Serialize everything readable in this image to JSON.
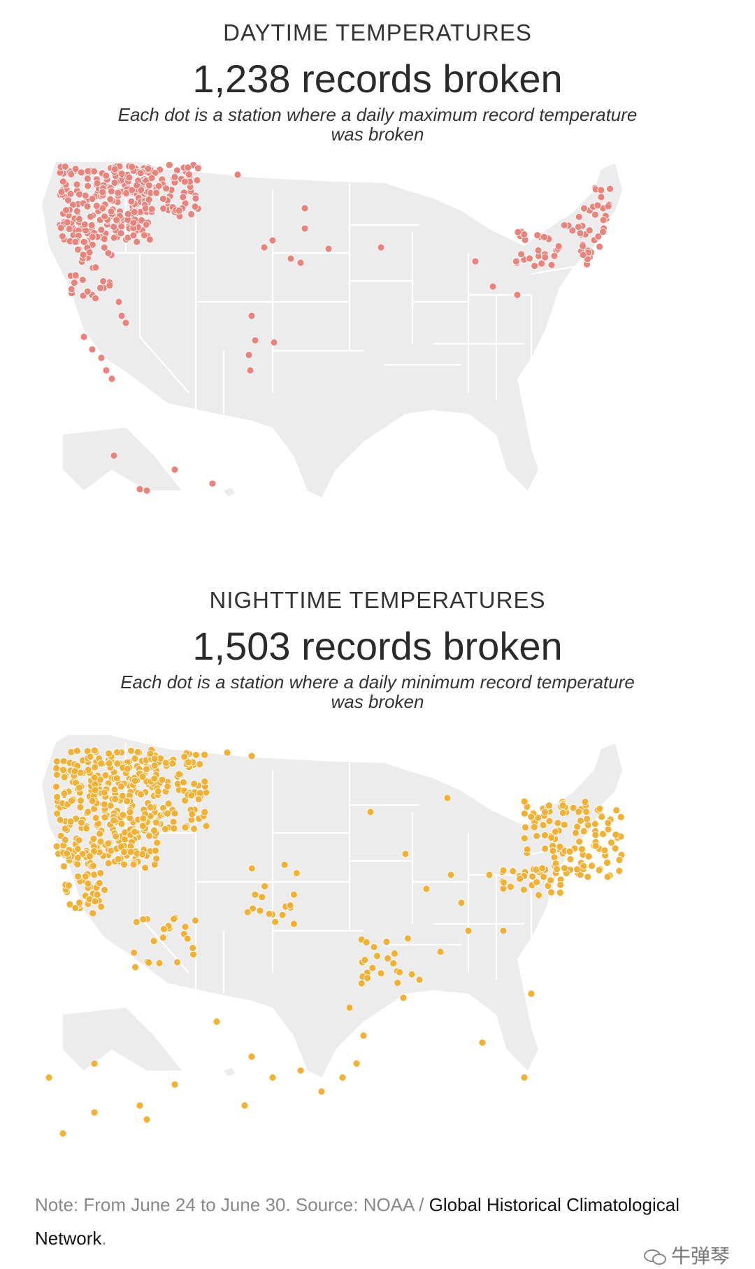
{
  "day": {
    "kicker": "DAYTIME TEMPERATURES",
    "headline": "1,238 records broken",
    "subhead": "Each dot is a station where a daily maximum record temperature was broken",
    "dot_color": "#e8847c"
  },
  "night": {
    "kicker": "NIGHTTIME TEMPERATURES",
    "headline": "1,503 records broken",
    "subhead": "Each dot is a station where a daily minimum record temperature was broken",
    "dot_color": "#f0b134"
  },
  "colors": {
    "land": "#ececec",
    "state_borders": "#ffffff"
  },
  "footnote": {
    "prefix": "Note: From June 24 to June 30. Source: NOAA / ",
    "source_strong": "Global Historical Climatological Network",
    "suffix": "."
  },
  "watermark": {
    "text": "牛弹琴",
    "icon": "wechat-icon"
  }
}
